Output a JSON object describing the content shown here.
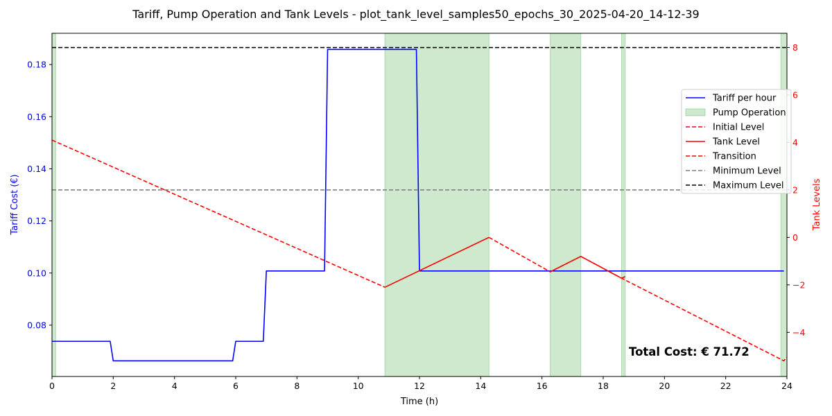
{
  "chart_data": {
    "type": "line",
    "title": "Tariff, Pump Operation and Tank Levels - plot_tank_level_samples50_epochs_30_2025-04-20_14-12-39",
    "xlabel": "Time (h)",
    "ylabel_left": "Tariff Cost (€)",
    "ylabel_right": "Tank Levels",
    "xlim": [
      0,
      24
    ],
    "ylim_left": [
      0.0603,
      0.192
    ],
    "ylim_right": [
      -5.86,
      8.6
    ],
    "x_ticks": [
      0,
      2,
      4,
      6,
      8,
      10,
      12,
      14,
      16,
      18,
      20,
      22,
      24
    ],
    "y_ticks_left": [
      0.08,
      0.1,
      0.12,
      0.14,
      0.16,
      0.18
    ],
    "y_ticks_left_labels": [
      "0.08",
      "0.10",
      "0.12",
      "0.14",
      "0.16",
      "0.18"
    ],
    "y_ticks_right": [
      -4,
      -2,
      0,
      2,
      4,
      6,
      8
    ],
    "y_ticks_right_labels": [
      "−4",
      "−2",
      "0",
      "2",
      "4",
      "6",
      "8"
    ],
    "colors": {
      "tariff": "#0000ff",
      "tank": "#ff0000",
      "pump": "#2ca02c",
      "minimum": "#808080",
      "maximum": "#000000"
    },
    "legend_position": "center-right",
    "legend": [
      {
        "label": "Tariff per hour",
        "style": "solid",
        "color": "#0000ff"
      },
      {
        "label": "Pump Operation",
        "style": "patch",
        "color": "#2ca02c"
      },
      {
        "label": "Initial Level",
        "style": "dashed",
        "color": "#ff0000"
      },
      {
        "label": "Tank Level",
        "style": "solid",
        "color": "#ff0000"
      },
      {
        "label": "Transition",
        "style": "dashed",
        "color": "#ff0000"
      },
      {
        "label": "Minimum Level",
        "style": "dashed",
        "color": "#808080"
      },
      {
        "label": "Maximum Level",
        "style": "dashed",
        "color": "#000000"
      }
    ],
    "series": [
      {
        "name": "Tariff per hour",
        "axis": "left",
        "x": [
          0,
          1.9,
          2.0,
          5.9,
          6.0,
          6.9,
          7.0,
          8.9,
          9.0,
          11.9,
          12.0,
          23.9
        ],
        "y": [
          0.0738,
          0.0738,
          0.0663,
          0.0663,
          0.0738,
          0.0738,
          0.1008,
          0.1008,
          0.1858,
          0.1858,
          0.1008,
          0.1008
        ]
      },
      {
        "name": "Initial Level",
        "axis": "right",
        "x": [
          0,
          10.87
        ],
        "y": [
          4.1,
          -2.1
        ]
      },
      {
        "name": "Tank Level",
        "axis": "right",
        "x": [
          10.87,
          14.27
        ],
        "y": [
          -2.1,
          0.0
        ]
      },
      {
        "name": "Transition",
        "axis": "right",
        "x": [
          14.27,
          16.27,
          17.27,
          18.6,
          23.9,
          24.0
        ],
        "y": [
          0.0,
          -1.45,
          -0.8,
          -1.72,
          -5.2,
          -5.05
        ]
      },
      {
        "name": "Tank Level",
        "axis": "right",
        "x": [
          16.27,
          17.27,
          18.6,
          18.72
        ],
        "y": [
          -1.45,
          -0.8,
          -1.72,
          -1.65
        ]
      },
      {
        "name": "Minimum Level",
        "axis": "right",
        "x": [
          0,
          24
        ],
        "y": [
          2,
          2
        ]
      },
      {
        "name": "Maximum Level",
        "axis": "right",
        "x": [
          0,
          24
        ],
        "y": [
          8,
          8
        ]
      }
    ],
    "pump_operation": [
      [
        0,
        0.12
      ],
      [
        10.87,
        14.27
      ],
      [
        16.27,
        17.27
      ],
      [
        18.6,
        18.72
      ],
      [
        23.8,
        24
      ]
    ],
    "annotation": "Total Cost: € 71.72"
  }
}
